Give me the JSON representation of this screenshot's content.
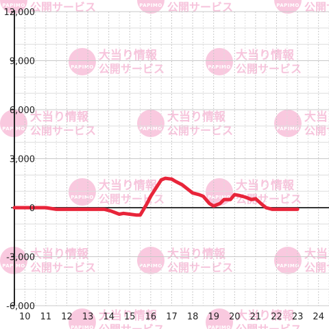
{
  "watermark": {
    "line1": "大当り情報",
    "line2": "公開サービス",
    "badge": "PAPIMO"
  },
  "chart_data": {
    "type": "line",
    "title": "",
    "xlabel": "",
    "ylabel": "",
    "xlim": [
      9.5,
      24.5
    ],
    "ylim": [
      -6000,
      12000
    ],
    "x_ticks": [
      10,
      11,
      12,
      13,
      14,
      15,
      16,
      17,
      18,
      19,
      20,
      21,
      22,
      23,
      24
    ],
    "x_tick_labels": [
      "10",
      "11",
      "12",
      "13",
      "14",
      "15",
      "16",
      "17",
      "18",
      "19",
      "20",
      "21",
      "22",
      "23",
      "24"
    ],
    "y_ticks": [
      -6000,
      -3000,
      0,
      3000,
      6000,
      9000,
      12000
    ],
    "y_tick_labels": [
      "-6,000",
      "-3,000",
      "0",
      "3,000",
      "6,000",
      "9,000",
      "12,000"
    ],
    "grid": true,
    "colors": {
      "series": "#e8253a",
      "zero_line": "#333333",
      "grid_major": "#c8c8c8",
      "grid_minor": "#dddddd"
    },
    "series": [
      {
        "x": [
          9.5,
          11.0,
          11.5,
          12.0,
          13.0,
          13.8,
          14.1,
          14.5,
          14.7,
          15.0,
          15.3,
          15.5,
          15.8,
          16.0,
          16.3,
          16.5,
          16.7,
          17.0,
          17.2,
          17.5,
          17.8,
          18.0,
          18.3,
          18.5,
          18.8,
          19.0,
          19.3,
          19.5,
          19.8,
          20.0,
          20.2,
          20.5,
          20.8,
          21.0,
          21.3,
          21.5,
          21.8,
          22.0,
          22.3,
          22.5,
          22.8,
          23.0
        ],
        "y": [
          0,
          0,
          -100,
          -100,
          -100,
          -100,
          -200,
          -400,
          -350,
          -400,
          -450,
          -450,
          200,
          700,
          1300,
          1700,
          1800,
          1750,
          1600,
          1400,
          1100,
          900,
          800,
          700,
          250,
          100,
          250,
          500,
          500,
          800,
          750,
          650,
          500,
          550,
          200,
          0,
          -100,
          -100,
          -100,
          -100,
          -100,
          -100
        ]
      }
    ]
  }
}
